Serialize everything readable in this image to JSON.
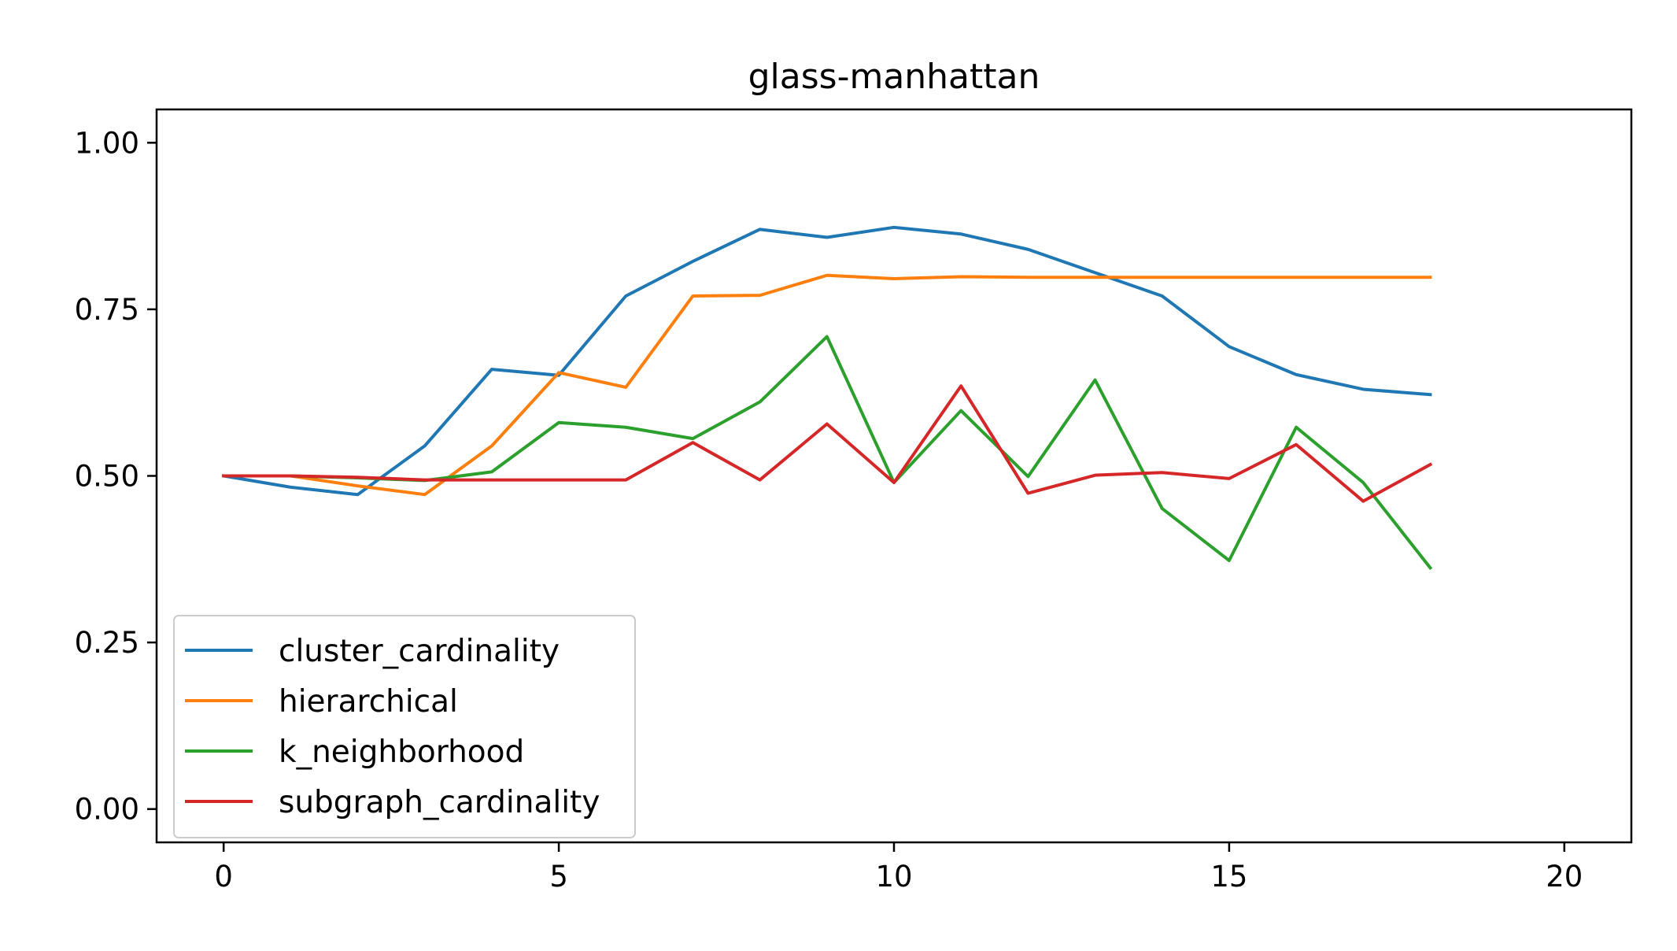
{
  "chart_data": {
    "type": "line",
    "title": "glass-manhattan",
    "xlabel": "",
    "ylabel": "",
    "xlim": [
      -1,
      21
    ],
    "ylim": [
      -0.05,
      1.05
    ],
    "xticks": [
      0,
      5,
      10,
      15,
      20
    ],
    "xtick_labels": [
      "0",
      "5",
      "10",
      "15",
      "20"
    ],
    "yticks": [
      0.0,
      0.25,
      0.5,
      0.75,
      1.0
    ],
    "ytick_labels": [
      "0.00",
      "0.25",
      "0.50",
      "0.75",
      "1.00"
    ],
    "grid": false,
    "legend_position": "lower-left",
    "x": [
      0,
      1,
      2,
      3,
      4,
      5,
      6,
      7,
      8,
      9,
      10,
      11,
      12,
      13,
      14,
      15,
      16,
      17,
      18
    ],
    "series": [
      {
        "name": "cluster_cardinality",
        "color": "#1f77b4",
        "values": [
          0.5,
          0.483,
          0.472,
          0.545,
          0.66,
          0.651,
          0.77,
          0.822,
          0.87,
          0.858,
          0.873,
          0.863,
          0.84,
          0.805,
          0.77,
          0.694,
          0.652,
          0.63,
          0.622
        ]
      },
      {
        "name": "hierarchical",
        "color": "#ff7f0e",
        "values": [
          0.5,
          0.5,
          0.485,
          0.472,
          0.545,
          0.655,
          0.633,
          0.77,
          0.771,
          0.801,
          0.796,
          0.799,
          0.798,
          0.798,
          0.798,
          0.798,
          0.798,
          0.798,
          0.798
        ]
      },
      {
        "name": "k_neighborhood",
        "color": "#2ca02c",
        "values": [
          0.5,
          0.5,
          0.497,
          0.493,
          0.506,
          0.58,
          0.573,
          0.556,
          0.611,
          0.709,
          0.49,
          0.598,
          0.499,
          0.644,
          0.451,
          0.373,
          0.573,
          0.49,
          0.362
        ]
      },
      {
        "name": "subgraph_cardinality",
        "color": "#d62728",
        "values": [
          0.5,
          0.5,
          0.498,
          0.494,
          0.494,
          0.494,
          0.494,
          0.55,
          0.494,
          0.578,
          0.49,
          0.635,
          0.474,
          0.501,
          0.505,
          0.496,
          0.547,
          0.462,
          0.517
        ]
      }
    ]
  }
}
